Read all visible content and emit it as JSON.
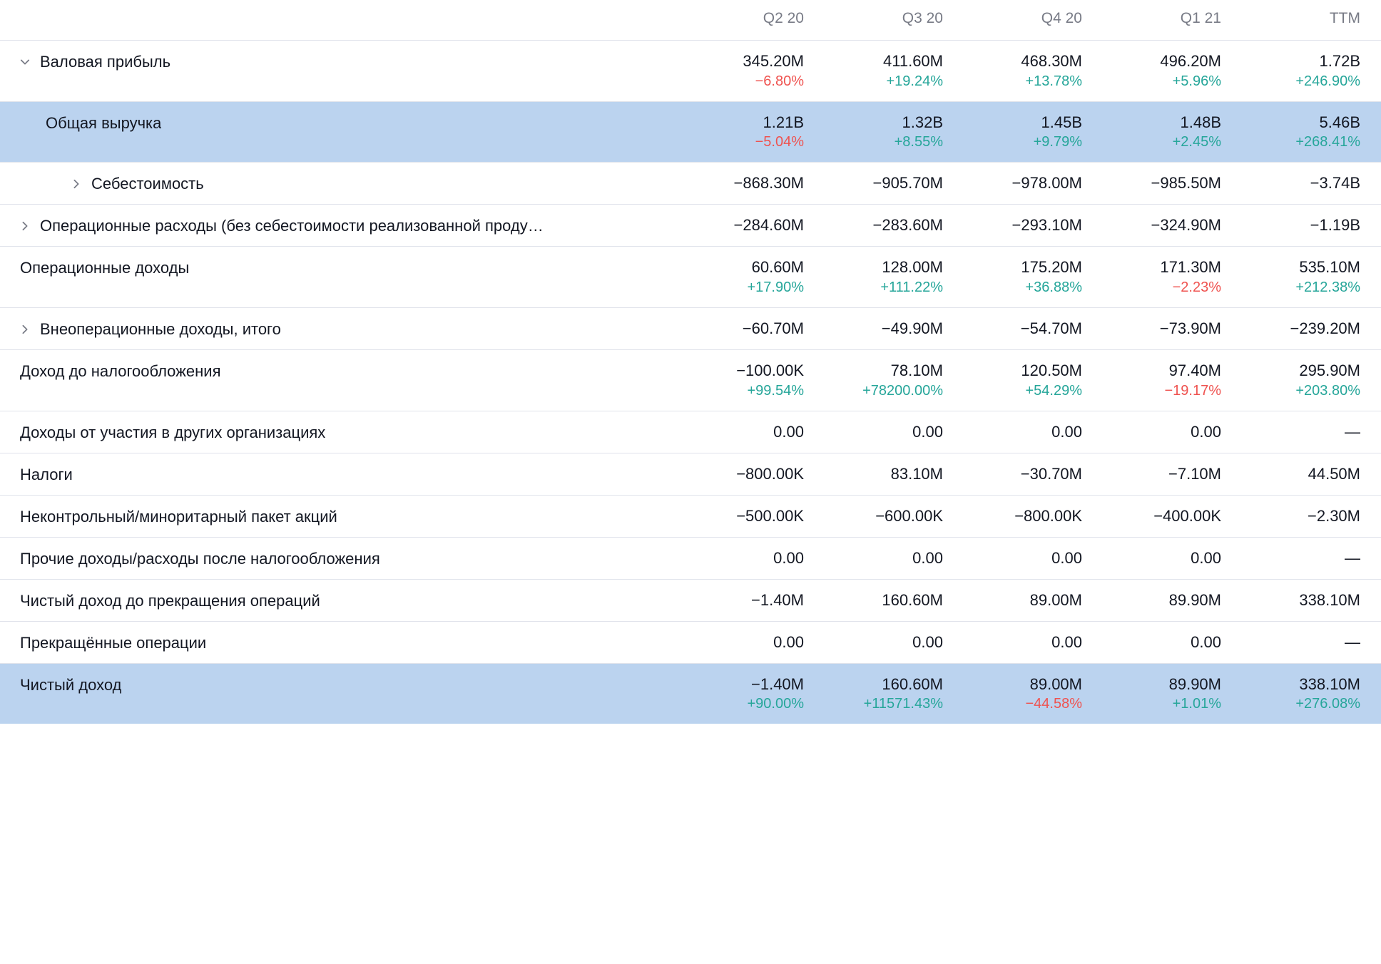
{
  "colors": {
    "text": "#131722",
    "muted": "#787b86",
    "positive": "#26a69a",
    "negative": "#ef5350",
    "highlight_bg": "#bbd3ef",
    "border": "#e0e3eb",
    "background": "#ffffff"
  },
  "typography": {
    "family": "Trebuchet MS",
    "value_fontsize": 22,
    "change_fontsize": 20,
    "header_fontsize": 21
  },
  "table": {
    "columns": [
      "Q2 20",
      "Q3 20",
      "Q4 20",
      "Q1 21",
      "TTM"
    ],
    "rows": [
      {
        "id": "gross_profit",
        "label": "Валовая прибыль",
        "indent": 0,
        "expand": "open",
        "highlighted": false,
        "values": [
          "345.20M",
          "411.60M",
          "468.30M",
          "496.20M",
          "1.72B"
        ],
        "changes": [
          "−6.80%",
          "+19.24%",
          "+13.78%",
          "+5.96%",
          "+246.90%"
        ],
        "change_sign": [
          "neg",
          "pos",
          "pos",
          "pos",
          "pos"
        ]
      },
      {
        "id": "total_revenue",
        "label": "Общая выручка",
        "indent": 1,
        "expand": "none",
        "highlighted": true,
        "values": [
          "1.21B",
          "1.32B",
          "1.45B",
          "1.48B",
          "5.46B"
        ],
        "changes": [
          "−5.04%",
          "+8.55%",
          "+9.79%",
          "+2.45%",
          "+268.41%"
        ],
        "change_sign": [
          "neg",
          "pos",
          "pos",
          "pos",
          "pos"
        ]
      },
      {
        "id": "cost_of_goods",
        "label": "Себестоимость",
        "indent": 2,
        "expand": "closed",
        "highlighted": false,
        "values": [
          "−868.30M",
          "−905.70M",
          "−978.00M",
          "−985.50M",
          "−3.74B"
        ],
        "changes": null
      },
      {
        "id": "operating_expenses",
        "label": "Операционные расходы (без себестоимости реализованной проду…",
        "indent": 0,
        "expand": "closed",
        "highlighted": false,
        "values": [
          "−284.60M",
          "−283.60M",
          "−293.10M",
          "−324.90M",
          "−1.19B"
        ],
        "changes": null
      },
      {
        "id": "operating_income",
        "label": "Операционные доходы",
        "indent": 0,
        "expand": "none",
        "highlighted": false,
        "values": [
          "60.60M",
          "128.00M",
          "175.20M",
          "171.30M",
          "535.10M"
        ],
        "changes": [
          "+17.90%",
          "+111.22%",
          "+36.88%",
          "−2.23%",
          "+212.38%"
        ],
        "change_sign": [
          "pos",
          "pos",
          "pos",
          "neg",
          "pos"
        ]
      },
      {
        "id": "non_operating_income",
        "label": "Внеоперационные доходы, итого",
        "indent": 0,
        "expand": "closed",
        "highlighted": false,
        "values": [
          "−60.70M",
          "−49.90M",
          "−54.70M",
          "−73.90M",
          "−239.20M"
        ],
        "changes": null
      },
      {
        "id": "pretax_income",
        "label": "Доход до налогообложения",
        "indent": 0,
        "expand": "none",
        "highlighted": false,
        "values": [
          "−100.00K",
          "78.10M",
          "120.50M",
          "97.40M",
          "295.90M"
        ],
        "changes": [
          "+99.54%",
          "+78200.00%",
          "+54.29%",
          "−19.17%",
          "+203.80%"
        ],
        "change_sign": [
          "pos",
          "pos",
          "pos",
          "neg",
          "pos"
        ]
      },
      {
        "id": "equity_earnings",
        "label": "Доходы от участия в других организациях",
        "indent": 0,
        "expand": "none",
        "highlighted": false,
        "values": [
          "0.00",
          "0.00",
          "0.00",
          "0.00",
          "—"
        ],
        "changes": null
      },
      {
        "id": "taxes",
        "label": "Налоги",
        "indent": 0,
        "expand": "none",
        "highlighted": false,
        "values": [
          "−800.00K",
          "83.10M",
          "−30.70M",
          "−7.10M",
          "44.50M"
        ],
        "changes": null
      },
      {
        "id": "minority_interest",
        "label": "Неконтрольный/миноритарный пакет акций",
        "indent": 0,
        "expand": "none",
        "highlighted": false,
        "values": [
          "−500.00K",
          "−600.00K",
          "−800.00K",
          "−400.00K",
          "−2.30M"
        ],
        "changes": null
      },
      {
        "id": "other_income_after_tax",
        "label": "Прочие доходы/расходы после налогообложения",
        "indent": 0,
        "expand": "none",
        "highlighted": false,
        "values": [
          "0.00",
          "0.00",
          "0.00",
          "0.00",
          "—"
        ],
        "changes": null
      },
      {
        "id": "net_income_before_discontinued",
        "label": "Чистый доход до прекращения операций",
        "indent": 0,
        "expand": "none",
        "highlighted": false,
        "values": [
          "−1.40M",
          "160.60M",
          "89.00M",
          "89.90M",
          "338.10M"
        ],
        "changes": null
      },
      {
        "id": "discontinued_operations",
        "label": "Прекращённые операции",
        "indent": 0,
        "expand": "none",
        "highlighted": false,
        "values": [
          "0.00",
          "0.00",
          "0.00",
          "0.00",
          "—"
        ],
        "changes": null
      },
      {
        "id": "net_income",
        "label": "Чистый доход",
        "indent": 0,
        "expand": "none",
        "highlighted": true,
        "last": true,
        "values": [
          "−1.40M",
          "160.60M",
          "89.00M",
          "89.90M",
          "338.10M"
        ],
        "changes": [
          "+90.00%",
          "+11571.43%",
          "−44.58%",
          "+1.01%",
          "+276.08%"
        ],
        "change_sign": [
          "pos",
          "pos",
          "neg",
          "pos",
          "pos"
        ]
      }
    ]
  }
}
